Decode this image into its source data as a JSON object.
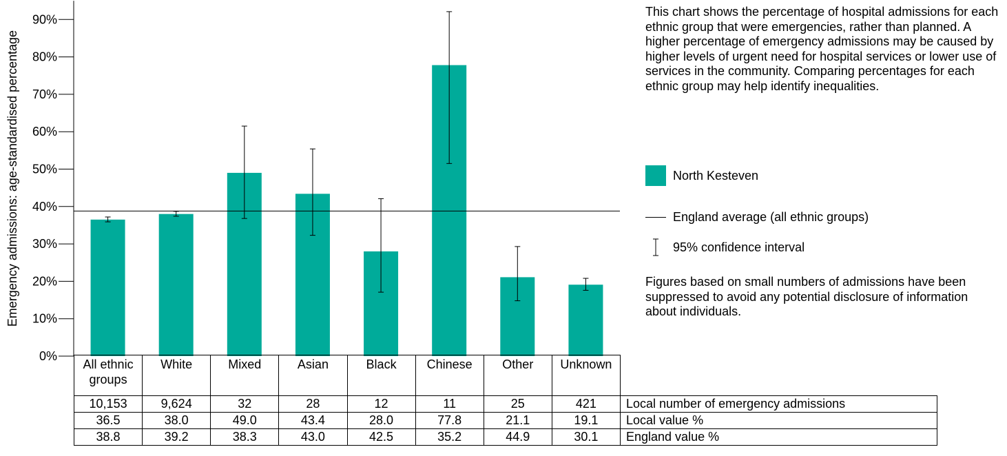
{
  "chart_data": {
    "type": "bar",
    "ylabel": "Emergency admissions: age-standardised percentage",
    "ylim": [
      0,
      95
    ],
    "yticks": [
      "0%",
      "10%",
      "20%",
      "30%",
      "40%",
      "50%",
      "60%",
      "70%",
      "80%",
      "90%"
    ],
    "ytick_values": [
      0,
      10,
      20,
      30,
      40,
      50,
      60,
      70,
      80,
      90
    ],
    "categories": [
      "All ethnic groups",
      "White",
      "Mixed",
      "Asian",
      "Black",
      "Chinese",
      "Other",
      "Unknown"
    ],
    "category_lines": [
      [
        "All ethnic",
        "groups"
      ],
      [
        "White"
      ],
      [
        "Mixed"
      ],
      [
        "Asian"
      ],
      [
        "Black"
      ],
      [
        "Chinese"
      ],
      [
        "Other"
      ],
      [
        "Unknown"
      ]
    ],
    "series": [
      {
        "name": "North Kesteven",
        "color": "#00ab9a",
        "values": [
          36.5,
          38.0,
          49.0,
          43.4,
          28.0,
          77.8,
          21.1,
          19.1
        ],
        "ci_lower": [
          35.9,
          37.4,
          36.8,
          32.3,
          17.1,
          51.5,
          14.8,
          17.6
        ],
        "ci_upper": [
          37.2,
          38.7,
          61.5,
          55.4,
          42.1,
          92.1,
          29.3,
          20.8
        ]
      }
    ],
    "england_average": 38.8,
    "grid": false
  },
  "description": "This chart shows the percentage of hospital admissions for each ethnic group that were emergencies, rather than planned. A higher percentage of emergency admissions may be caused by higher levels of urgent need for hospital services or lower use of services in the community. Comparing percentages for each ethnic group may help identify inequalities.",
  "legend": {
    "area": "North Kesteven",
    "england": "England average (all ethnic groups)",
    "ci": "95% confidence interval"
  },
  "note": "Figures based on small numbers of admissions have been suppressed to avoid any potential disclosure of information about individuals.",
  "table": {
    "rows": [
      {
        "label": "Local number of emergency admissions",
        "values": [
          "10,153",
          "9,624",
          "32",
          "28",
          "12",
          "11",
          "25",
          "421"
        ]
      },
      {
        "label": "Local value %",
        "values": [
          "36.5",
          "38.0",
          "49.0",
          "43.4",
          "28.0",
          "77.8",
          "21.1",
          "19.1"
        ]
      },
      {
        "label": "England value %",
        "values": [
          "38.8",
          "39.2",
          "38.3",
          "43.0",
          "42.5",
          "35.2",
          "44.9",
          "30.1"
        ]
      }
    ]
  }
}
